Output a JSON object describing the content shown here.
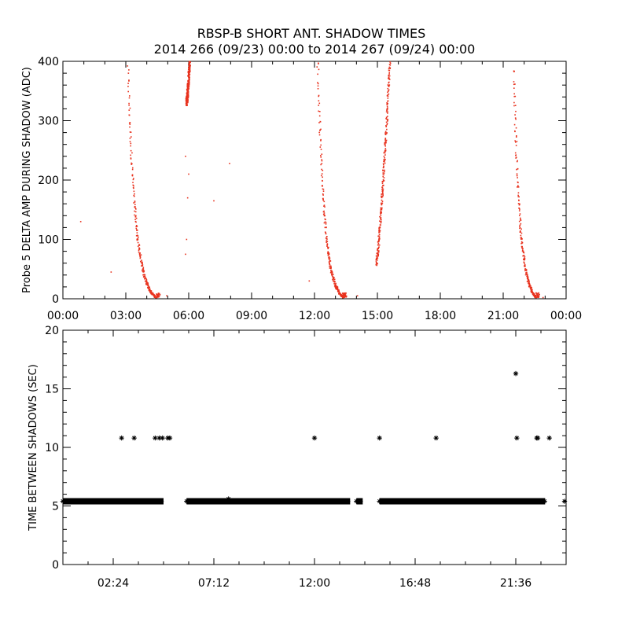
{
  "title": {
    "line1": "RBSP-B SHORT ANT. SHADOW TIMES",
    "line2": "2014 266 (09/23) 00:00 to 2014 267 (09/24) 00:00"
  },
  "colors": {
    "top_points": "#e8321e",
    "bottom_points": "#000000",
    "axes": "#000000"
  },
  "chart_data": [
    {
      "type": "scatter",
      "name": "top-panel",
      "ylabel": "Probe 5 DELTA AMP DURING SHADOW (ADC)",
      "x_unit": "hours",
      "xlim": [
        0,
        24
      ],
      "ylim": [
        0,
        400
      ],
      "x_tick_values": [
        0,
        3,
        6,
        9,
        12,
        15,
        18,
        21,
        24
      ],
      "x_tick_labels": [
        "00:00",
        "03:00",
        "06:00",
        "09:00",
        "12:00",
        "15:00",
        "18:00",
        "21:00",
        "00:00"
      ],
      "y_tick_values": [
        0,
        100,
        200,
        300,
        400
      ],
      "y_tick_labels": [
        "0",
        "100",
        "200",
        "300",
        "400"
      ],
      "color": "#e8321e",
      "segments": [
        {
          "x0": 3.1,
          "x1": 4.6,
          "y_start": 390,
          "curve": "decay"
        },
        {
          "x0": 12.15,
          "x1": 13.5,
          "y_start": 400,
          "curve": "decay"
        },
        {
          "x0": 21.5,
          "x1": 22.7,
          "y_start": 390,
          "curve": "decay"
        },
        {
          "x0": 14.95,
          "x1": 15.6,
          "y_start": 60,
          "y_end": 400,
          "curve": "rise"
        },
        {
          "x0": 5.9,
          "x1": 6.05,
          "y_start": 330,
          "y_end": 400,
          "curve": "rise"
        }
      ],
      "isolated": [
        [
          0.85,
          130
        ],
        [
          2.3,
          45
        ],
        [
          5.85,
          240
        ],
        [
          5.95,
          170
        ],
        [
          5.9,
          100
        ],
        [
          5.85,
          75
        ],
        [
          6.0,
          210
        ],
        [
          7.2,
          165
        ],
        [
          7.95,
          228
        ],
        [
          11.75,
          30
        ],
        [
          14.05,
          5
        ],
        [
          4.95,
          5
        ],
        [
          22.9,
          2
        ]
      ]
    },
    {
      "type": "scatter",
      "name": "bottom-panel",
      "ylabel": "TIME BETWEEN SHADOWS (SEC)",
      "x_unit": "hours",
      "xlim": [
        0,
        24
      ],
      "ylim": [
        0,
        20
      ],
      "x_tick_values": [
        2.4,
        7.2,
        12.0,
        16.8,
        21.6
      ],
      "x_tick_labels": [
        "02:24",
        "07:12",
        "12:00",
        "16:48",
        "21:36"
      ],
      "y_tick_values": [
        0,
        5,
        10,
        15,
        20
      ],
      "y_tick_labels": [
        "0",
        "5",
        "10",
        "15",
        "20"
      ],
      "color": "#000000",
      "marker": "asterisk",
      "baseline_value": 5.4,
      "baseline_ranges": [
        [
          0.0,
          4.8
        ],
        [
          5.9,
          13.7
        ],
        [
          14.0,
          14.3
        ],
        [
          15.1,
          23.0
        ],
        [
          24.0,
          24.0
        ]
      ],
      "outliers": [
        [
          2.8,
          10.8
        ],
        [
          3.4,
          10.8
        ],
        [
          4.4,
          10.8
        ],
        [
          4.6,
          10.8
        ],
        [
          4.75,
          10.8
        ],
        [
          5.0,
          10.8
        ],
        [
          5.1,
          10.8
        ],
        [
          12.0,
          10.8
        ],
        [
          15.1,
          10.8
        ],
        [
          17.8,
          10.8
        ],
        [
          21.6,
          16.3
        ],
        [
          21.65,
          10.8
        ],
        [
          22.6,
          10.8
        ],
        [
          22.65,
          10.8
        ],
        [
          23.2,
          10.8
        ],
        [
          7.9,
          5.6
        ]
      ]
    }
  ]
}
